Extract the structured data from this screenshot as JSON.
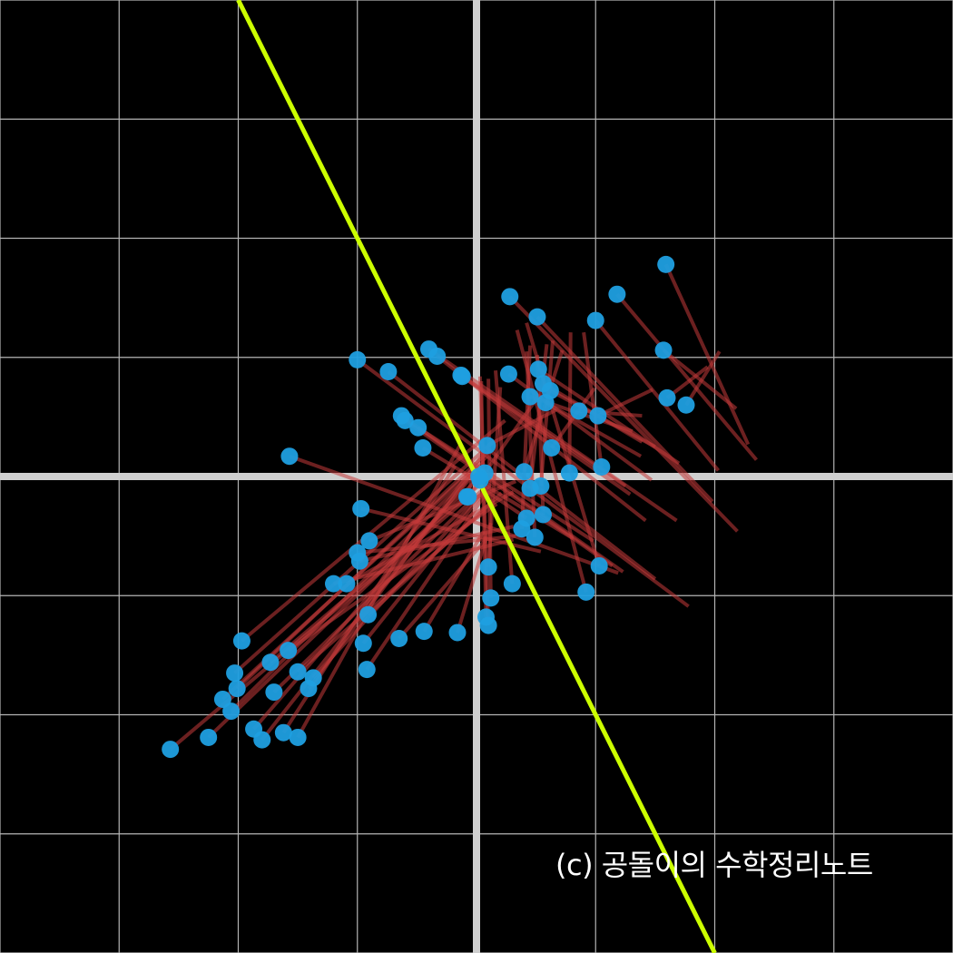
{
  "chart_data": {
    "type": "scatter",
    "title": "",
    "xlabel": "",
    "ylabel": "",
    "xlim": [
      -4,
      4
    ],
    "ylim": [
      -4,
      4
    ],
    "grid": true,
    "grid_step": 1,
    "projection_line": {
      "slope": -2,
      "intercept": 0,
      "color": "#ccff00"
    },
    "series": [
      {
        "marker_color": "#1f9fe0",
        "connector_color": "#c43a3a",
        "points": [
          {
            "original": [
              -2.57,
              -2.29
            ],
            "projected": [
              -0.06,
              -0.17
            ]
          },
          {
            "original": [
              -2.25,
              -2.19
            ],
            "projected": [
              -0.02,
              -0.05
            ]
          },
          {
            "original": [
              -2.13,
              -1.87
            ],
            "projected": [
              0.09,
              0.17
            ]
          },
          {
            "original": [
              -2.06,
              -1.97
            ],
            "projected": [
              0.06,
              0.12
            ]
          },
          {
            "original": [
              -2.03,
              -1.65
            ],
            "projected": [
              0.15,
              0.3
            ]
          },
          {
            "original": [
              -2.01,
              -1.78
            ],
            "projected": [
              0.11,
              0.22
            ]
          },
          {
            "original": [
              -1.97,
              -1.38
            ],
            "projected": [
              0.24,
              0.47
            ]
          },
          {
            "original": [
              -1.87,
              -2.12
            ],
            "projected": [
              -0.02,
              0.02
            ]
          },
          {
            "original": [
              -1.8,
              -2.21
            ],
            "projected": [
              -0.04,
              0.02
            ]
          },
          {
            "original": [
              -1.7,
              -1.81
            ],
            "projected": [
              0.04,
              -0.12
            ]
          },
          {
            "original": [
              -1.73,
              -1.56
            ],
            "projected": [
              0.12,
              0.01
            ]
          },
          {
            "original": [
              -1.58,
              -1.46
            ],
            "projected": [
              0.17,
              -0.23
            ]
          },
          {
            "original": [
              -1.62,
              -2.15
            ],
            "projected": [
              -0.18,
              0.09
            ]
          },
          {
            "original": [
              -1.5,
              -1.64
            ],
            "projected": [
              0.07,
              -0.28
            ]
          },
          {
            "original": [
              -1.5,
              -2.19
            ],
            "projected": [
              -0.14,
              0.26
            ]
          },
          {
            "original": [
              -1.37,
              -1.69
            ],
            "projected": [
              0.09,
              -0.09
            ]
          },
          {
            "original": [
              -1.41,
              -1.78
            ],
            "projected": [
              0.05,
              0.18
            ]
          },
          {
            "original": [
              -1.2,
              -0.9
            ],
            "projected": [
              0.31,
              -0.53
            ]
          },
          {
            "original": [
              -1.09,
              -0.9
            ],
            "projected": [
              0.31,
              -0.13
            ]
          },
          {
            "original": [
              -0.97,
              -0.27
            ],
            "projected": [
              0.54,
              -0.63
            ]
          },
          {
            "original": [
              -0.91,
              -1.16
            ],
            "projected": [
              0.21,
              -0.14
            ]
          },
          {
            "original": [
              -1.0,
              -0.64
            ],
            "projected": [
              0.33,
              -0.5
            ]
          },
          {
            "original": [
              -0.95,
              -1.4
            ],
            "projected": [
              0.12,
              -0.06
            ]
          },
          {
            "original": [
              -0.92,
              -1.62
            ],
            "projected": [
              0.06,
              -0.17
            ]
          },
          {
            "original": [
              -0.9,
              -0.54
            ],
            "projected": [
              0.33,
              -0.04
            ]
          },
          {
            "original": [
              -0.65,
              -1.36
            ],
            "projected": [
              0.07,
              -0.54
            ]
          },
          {
            "original": [
              -0.44,
              -1.3
            ],
            "projected": [
              0.06,
              -0.46
            ]
          },
          {
            "original": [
              -0.16,
              -1.31
            ],
            "projected": [
              0.12,
              -0.39
            ]
          },
          {
            "original": [
              -1.57,
              0.17
            ],
            "projected": [
              1.19,
              -0.81
            ]
          },
          {
            "original": [
              -1.0,
              0.98
            ],
            "projected": [
              1.78,
              -1.09
            ]
          },
          {
            "original": [
              -0.74,
              0.88
            ],
            "projected": [
              1.5,
              -0.86
            ]
          },
          {
            "original": [
              -0.63,
              0.51
            ],
            "projected": [
              1.23,
              -0.8
            ]
          },
          {
            "original": [
              -0.6,
              0.47
            ],
            "projected": [
              1.14,
              -0.75
            ]
          },
          {
            "original": [
              -0.49,
              0.41
            ],
            "projected": [
              0.98,
              -0.54
            ]
          },
          {
            "original": [
              -0.45,
              0.24
            ],
            "projected": [
              0.81,
              -0.52
            ]
          },
          {
            "original": [
              -0.4,
              1.07
            ],
            "projected": [
              1.68,
              -0.37
            ]
          },
          {
            "original": [
              -0.33,
              1.01
            ],
            "projected": [
              1.42,
              -0.37
            ]
          },
          {
            "original": [
              -0.12,
              0.84
            ],
            "projected": [
              1.25,
              -0.08
            ]
          },
          {
            "original": [
              -0.13,
              0.85
            ],
            "projected": [
              1.29,
              -0.15
            ]
          },
          {
            "original": [
              0.27,
              0.86
            ],
            "projected": [
              1.47,
              -0.03
            ]
          },
          {
            "original": [
              0.52,
              0.9
            ],
            "projected": [
              1.7,
              0.11
            ]
          },
          {
            "original": [
              0.62,
              0.72
            ],
            "projected": [
              1.5,
              0.25
            ]
          },
          {
            "original": [
              0.56,
              0.78
            ],
            "projected": [
              1.39,
              0.29
            ]
          },
          {
            "original": [
              0.45,
              0.67
            ],
            "projected": [
              1.31,
              0.38
            ]
          },
          {
            "original": [
              0.58,
              0.62
            ],
            "projected": [
              1.38,
              0.17
            ]
          },
          {
            "original": [
              0.28,
              1.51
            ],
            "projected": [
              2.19,
              -0.46
            ]
          },
          {
            "original": [
              0.51,
              1.34
            ],
            "projected": [
              1.98,
              -0.21
            ]
          },
          {
            "original": [
              1.0,
              1.31
            ],
            "projected": [
              2.03,
              0.05
            ]
          },
          {
            "original": [
              1.18,
              1.53
            ],
            "projected": [
              2.35,
              0.14
            ]
          },
          {
            "original": [
              1.57,
              1.06
            ],
            "projected": [
              2.18,
              0.57
            ]
          },
          {
            "original": [
              0.86,
              0.55
            ],
            "projected": [
              1.39,
              0.51
            ]
          },
          {
            "original": [
              1.02,
              0.51
            ],
            "projected": [
              1.48,
              0.73
            ]
          },
          {
            "original": [
              1.6,
              0.66
            ],
            "projected": [
              1.94,
              0.92
            ]
          },
          {
            "original": [
              1.76,
              0.6
            ],
            "projected": [
              2.04,
              1.05
            ]
          },
          {
            "original": [
              0.09,
              0.26
            ],
            "projected": [
              0.67,
              0.56
            ]
          },
          {
            "original": [
              0.63,
              0.24
            ],
            "projected": [
              0.99,
              0.74
            ]
          },
          {
            "original": [
              -0.07,
              -0.17
            ],
            "projected": [
              0.53,
              0.69
            ]
          },
          {
            "original": [
              0.4,
              0.04
            ],
            "projected": [
              0.72,
              1.06
            ]
          },
          {
            "original": [
              0.78,
              0.03
            ],
            "projected": [
              0.79,
              1.21
            ]
          },
          {
            "original": [
              1.05,
              0.08
            ],
            "projected": [
              0.9,
              1.21
            ]
          },
          {
            "original": [
              0.38,
              -0.44
            ],
            "projected": [
              0.45,
              1.1
            ]
          },
          {
            "original": [
              0.54,
              -0.08
            ],
            "projected": [
              0.64,
              1.14
            ]
          },
          {
            "original": [
              0.45,
              -0.1
            ],
            "projected": [
              0.59,
              1.11
            ]
          },
          {
            "original": [
              0.49,
              -0.51
            ],
            "projected": [
              0.42,
              1.05
            ]
          },
          {
            "original": [
              0.56,
              -0.32
            ],
            "projected": [
              0.51,
              1.02
            ]
          },
          {
            "original": [
              0.92,
              -0.97
            ],
            "projected": [
              0.34,
              1.23
            ]
          },
          {
            "original": [
              1.03,
              -0.75
            ],
            "projected": [
              0.42,
              1.29
            ]
          },
          {
            "original": [
              0.1,
              -0.76
            ],
            "projected": [
              0.2,
              0.75
            ]
          },
          {
            "original": [
              0.3,
              -0.9
            ],
            "projected": [
              0.16,
              0.89
            ]
          },
          {
            "original": [
              0.12,
              -1.02
            ],
            "projected": [
              0.1,
              0.82
            ]
          },
          {
            "original": [
              0.08,
              -1.18
            ],
            "projected": [
              0.04,
              0.8
            ]
          },
          {
            "original": [
              0.1,
              -1.25
            ],
            "projected": [
              0.03,
              0.84
            ]
          },
          {
            "original": [
              0.02,
              0.0
            ],
            "projected": [
              0.02,
              -0.02
            ]
          },
          {
            "original": [
              0.07,
              0.03
            ],
            "projected": [
              0.05,
              -0.06
            ]
          },
          {
            "original": [
              0.03,
              -0.03
            ],
            "projected": [
              0.01,
              -0.01
            ]
          },
          {
            "original": [
              -0.08,
              -0.17
            ],
            "projected": [
              -0.02,
              0.03
            ]
          },
          {
            "original": [
              0.42,
              -0.35
            ],
            "projected": [
              0.05,
              -0.1
            ]
          },
          {
            "original": [
              1.59,
              1.78
            ],
            "projected": [
              2.28,
              0.27
            ]
          },
          {
            "original": [
              -0.98,
              -0.71
            ],
            "projected": [
              0.31,
              -0.42
            ]
          }
        ]
      }
    ]
  },
  "watermark": "(c) 공돌이의 수학정리노트"
}
